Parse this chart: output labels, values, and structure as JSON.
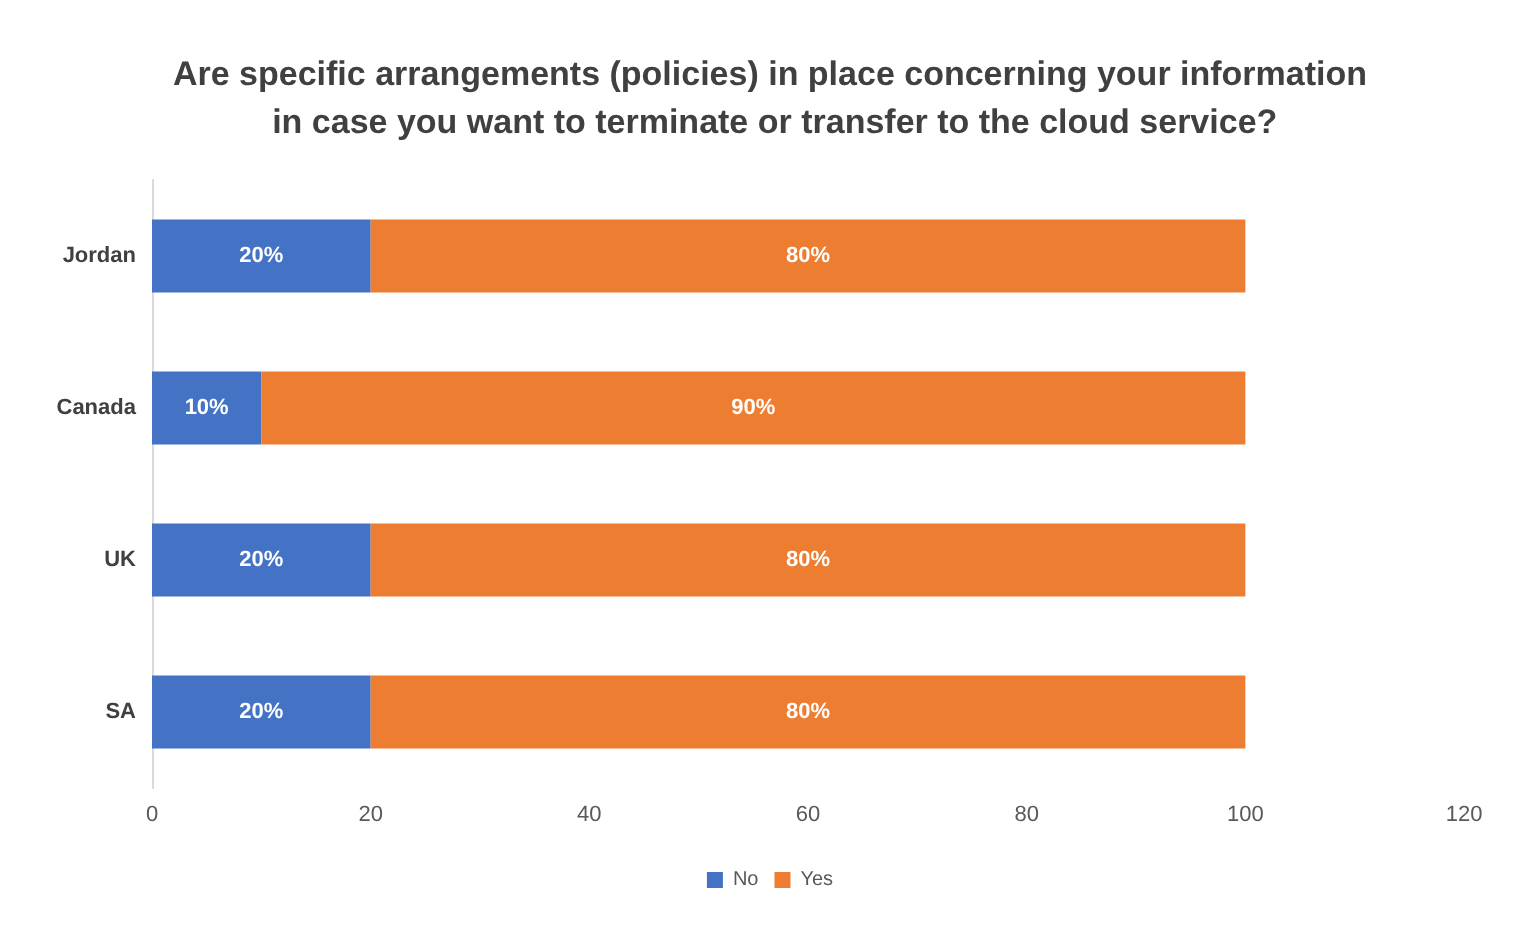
{
  "chart_data": {
    "type": "bar",
    "orientation": "horizontal",
    "stacked": true,
    "title": "Are specific arrangements (policies) in place concerning your information in case you want to terminate or transfer to the cloud service?",
    "categories": [
      "Jordan",
      "Canada",
      "UK",
      "SA"
    ],
    "series": [
      {
        "name": "No",
        "color": "#4472c4",
        "values": [
          20,
          10,
          20,
          20
        ],
        "value_labels": [
          "20%",
          "10%",
          "20%",
          "20%"
        ]
      },
      {
        "name": "Yes",
        "color": "#ed7d31",
        "values": [
          80,
          90,
          80,
          80
        ],
        "value_labels": [
          "80%",
          "90%",
          "80%",
          "80%"
        ]
      }
    ],
    "xlim": [
      0,
      120
    ],
    "xticks": [
      0,
      20,
      40,
      60,
      80,
      100,
      120
    ],
    "grid": false,
    "legend": "bottom"
  }
}
